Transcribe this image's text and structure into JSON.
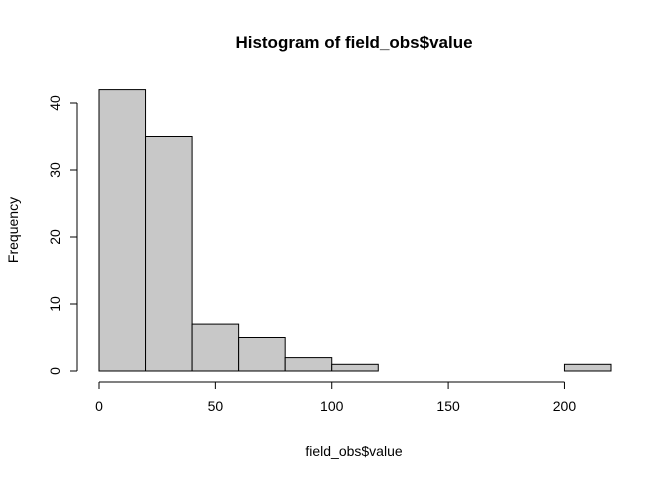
{
  "chart_data": {
    "type": "bar",
    "title": "Histogram of field_obs$value",
    "xlabel": "field_obs$value",
    "ylabel": "Frequency",
    "bins": [
      {
        "start": 0,
        "end": 20,
        "count": 42
      },
      {
        "start": 20,
        "end": 40,
        "count": 35
      },
      {
        "start": 40,
        "end": 60,
        "count": 7
      },
      {
        "start": 60,
        "end": 80,
        "count": 5
      },
      {
        "start": 80,
        "end": 100,
        "count": 2
      },
      {
        "start": 100,
        "end": 120,
        "count": 1
      },
      {
        "start": 120,
        "end": 140,
        "count": 0
      },
      {
        "start": 140,
        "end": 160,
        "count": 0
      },
      {
        "start": 160,
        "end": 180,
        "count": 0
      },
      {
        "start": 180,
        "end": 200,
        "count": 0
      },
      {
        "start": 200,
        "end": 220,
        "count": 1
      }
    ],
    "xlim": [
      0,
      220
    ],
    "ylim": [
      0,
      42
    ],
    "xticks": [
      "0",
      "50",
      "100",
      "150",
      "200"
    ],
    "yticks": [
      "0",
      "10",
      "20",
      "30",
      "40"
    ],
    "grid": false,
    "bar_color": "#c8c8c8"
  }
}
